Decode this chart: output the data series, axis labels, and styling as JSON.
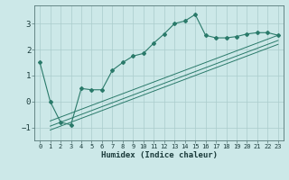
{
  "title": "",
  "xlabel": "Humidex (Indice chaleur)",
  "bg_color": "#cce8e8",
  "grid_color": "#aacccc",
  "line_color": "#2a7a6a",
  "xlim": [
    -0.5,
    23.5
  ],
  "ylim": [
    -1.5,
    3.7
  ],
  "xticks": [
    0,
    1,
    2,
    3,
    4,
    5,
    6,
    7,
    8,
    9,
    10,
    11,
    12,
    13,
    14,
    15,
    16,
    17,
    18,
    19,
    20,
    21,
    22,
    23
  ],
  "yticks": [
    -1,
    0,
    1,
    2,
    3
  ],
  "main_x": [
    0,
    1,
    2,
    3,
    4,
    5,
    6,
    7,
    8,
    9,
    10,
    11,
    12,
    13,
    14,
    15,
    16,
    17,
    18,
    19,
    20,
    21,
    22,
    23
  ],
  "main_y": [
    1.5,
    0.0,
    -0.8,
    -0.9,
    0.5,
    0.45,
    0.45,
    1.2,
    1.5,
    1.75,
    1.85,
    2.25,
    2.6,
    3.0,
    3.1,
    3.35,
    2.55,
    2.45,
    2.45,
    2.5,
    2.6,
    2.65,
    2.65,
    2.55
  ],
  "reg_lines": [
    {
      "x": [
        1,
        23
      ],
      "y": [
        -0.75,
        2.55
      ]
    },
    {
      "x": [
        1,
        23
      ],
      "y": [
        -0.95,
        2.35
      ]
    },
    {
      "x": [
        1,
        23
      ],
      "y": [
        -1.1,
        2.2
      ]
    }
  ]
}
